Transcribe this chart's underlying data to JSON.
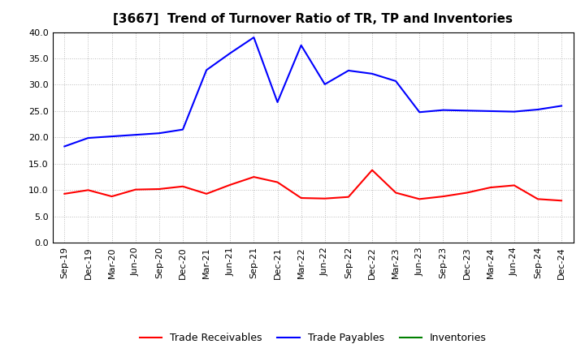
{
  "title": "[3667]  Trend of Turnover Ratio of TR, TP and Inventories",
  "x_labels": [
    "Sep-19",
    "Dec-19",
    "Mar-20",
    "Jun-20",
    "Sep-20",
    "Dec-20",
    "Mar-21",
    "Jun-21",
    "Sep-21",
    "Dec-21",
    "Mar-22",
    "Jun-22",
    "Sep-22",
    "Dec-22",
    "Mar-23",
    "Jun-23",
    "Sep-23",
    "Dec-23",
    "Mar-24",
    "Jun-24",
    "Sep-24",
    "Dec-24"
  ],
  "trade_receivables": [
    9.3,
    10.0,
    8.8,
    10.1,
    10.2,
    10.7,
    9.3,
    11.0,
    12.5,
    11.5,
    8.5,
    8.4,
    8.7,
    13.8,
    9.5,
    8.3,
    8.8,
    9.5,
    10.5,
    10.9,
    8.3,
    8.0
  ],
  "trade_payables": [
    18.3,
    19.9,
    20.2,
    20.5,
    20.8,
    21.5,
    32.8,
    36.0,
    39.0,
    26.7,
    37.5,
    30.1,
    32.7,
    32.1,
    30.7,
    24.8,
    25.2,
    25.1,
    25.0,
    24.9,
    25.3,
    26.0
  ],
  "inventories": [
    null,
    null,
    null,
    null,
    null,
    null,
    null,
    null,
    null,
    null,
    null,
    null,
    null,
    null,
    null,
    null,
    null,
    null,
    null,
    null,
    null,
    null
  ],
  "ylim": [
    0.0,
    40.0
  ],
  "yticks": [
    0.0,
    5.0,
    10.0,
    15.0,
    20.0,
    25.0,
    30.0,
    35.0,
    40.0
  ],
  "tr_color": "#ff0000",
  "tp_color": "#0000ff",
  "inv_color": "#008000",
  "background_color": "#ffffff",
  "grid_color": "#bbbbbb",
  "title_fontsize": 11,
  "tick_fontsize": 8,
  "legend_labels": [
    "Trade Receivables",
    "Trade Payables",
    "Inventories"
  ]
}
